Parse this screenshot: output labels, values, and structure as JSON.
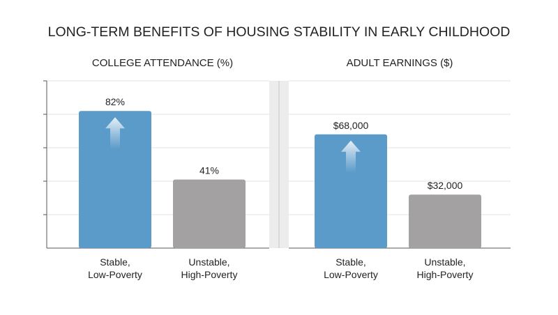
{
  "title": "LONG-TERM BENEFITS OF HOUSING STABILITY IN EARLY CHILDHOOD",
  "chart_data": [
    {
      "type": "bar",
      "title": "COLLEGE ATTENDANCE (%)",
      "categories": [
        [
          "Stable,",
          "Low-Poverty"
        ],
        [
          "Unstable,",
          "High-Poverty"
        ]
      ],
      "values": [
        82,
        41
      ],
      "data_labels": [
        "82%",
        "41%"
      ],
      "colors": [
        "#5b9bc9",
        "#a3a1a2"
      ],
      "ylim": [
        0,
        100
      ],
      "grid": true,
      "arrow_on_first_bar": true
    },
    {
      "type": "bar",
      "title": "ADULT EARNINGS ($)",
      "categories": [
        [
          "Stable,",
          "Low-Poverty"
        ],
        [
          "Unstable,",
          "High-Poverty"
        ]
      ],
      "values": [
        68000,
        32000
      ],
      "data_labels": [
        "$68,000",
        "$32,000"
      ],
      "colors": [
        "#5b9bc9",
        "#a3a1a2"
      ],
      "ylim": [
        0,
        100000
      ],
      "grid": true,
      "arrow_on_first_bar": true
    }
  ]
}
